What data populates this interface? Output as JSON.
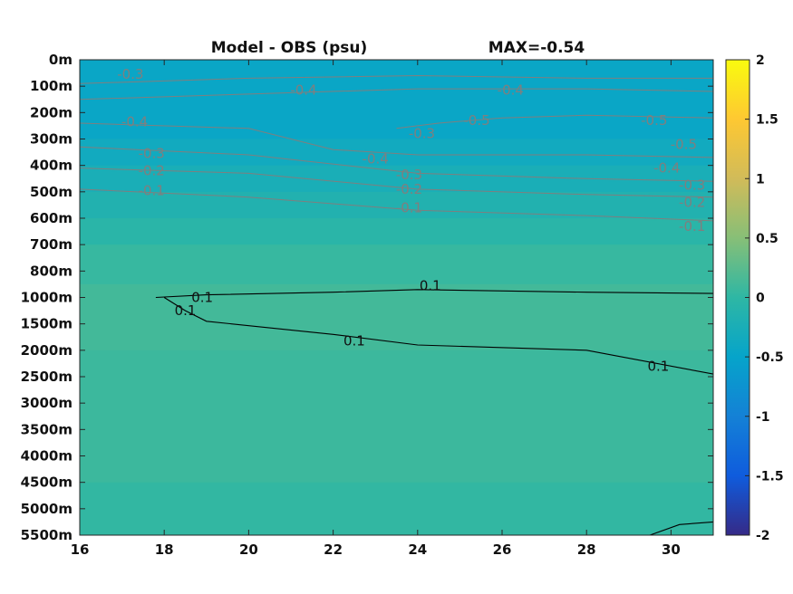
{
  "chart_data": {
    "type": "heatmap",
    "title": "Model - OBS (psu)",
    "subtitle": "MAX=-0.54",
    "x_ticks": [
      "16",
      "18",
      "20",
      "22",
      "24",
      "26",
      "28",
      "30"
    ],
    "xlim": [
      16,
      31
    ],
    "y_ticks": [
      "0m",
      "100m",
      "200m",
      "300m",
      "400m",
      "500m",
      "600m",
      "700m",
      "800m",
      "1000m",
      "1500m",
      "2000m",
      "2500m",
      "3000m",
      "3500m",
      "4000m",
      "4500m",
      "5000m",
      "5500m"
    ],
    "colorbar": {
      "ticks": [
        "2",
        "1.5",
        "1",
        "0.5",
        "0",
        "-0.5",
        "-1",
        "-1.5",
        "-2"
      ],
      "clim": [
        -2,
        2
      ],
      "colormap": "parula"
    },
    "colors": {
      "neg_contour": "#7f7f7f",
      "pos_contour": "#000000"
    },
    "bands": [
      {
        "depth_index": [
          0,
          3
        ],
        "value": -0.45
      },
      {
        "depth_index": [
          3,
          4
        ],
        "value": -0.35
      },
      {
        "depth_index": [
          4,
          5
        ],
        "value": -0.25
      },
      {
        "depth_index": [
          5,
          6
        ],
        "value": -0.15
      },
      {
        "depth_index": [
          6,
          7
        ],
        "value": -0.05
      },
      {
        "depth_index": [
          7,
          8.5
        ],
        "value": 0.05
      },
      {
        "depth_index": [
          8.5,
          11
        ],
        "value": 0.12
      },
      {
        "depth_index": [
          11,
          16
        ],
        "value": 0.08
      },
      {
        "depth_index": [
          16,
          18
        ],
        "value": 0.02
      }
    ],
    "contours": [
      {
        "level": -0.3,
        "points": [
          [
            16,
            0.9
          ],
          [
            20,
            0.7
          ],
          [
            24,
            0.6
          ],
          [
            28,
            0.7
          ],
          [
            31,
            0.7
          ]
        ]
      },
      {
        "level": -0.4,
        "points": [
          [
            16,
            1.5
          ],
          [
            20,
            1.3
          ],
          [
            24,
            1.1
          ],
          [
            28,
            1.1
          ],
          [
            31,
            1.2
          ]
        ]
      },
      {
        "level": -0.5,
        "points": [
          [
            23.5,
            2.6
          ],
          [
            24.5,
            2.4
          ],
          [
            26,
            2.2
          ],
          [
            28,
            2.1
          ],
          [
            31,
            2.2
          ]
        ]
      },
      {
        "level": -0.4,
        "points": [
          [
            16,
            2.4
          ],
          [
            20,
            2.6
          ],
          [
            22,
            3.4
          ],
          [
            24,
            3.6
          ],
          [
            28,
            3.6
          ],
          [
            31,
            3.7
          ]
        ]
      },
      {
        "level": -0.3,
        "points": [
          [
            16,
            3.3
          ],
          [
            20,
            3.6
          ],
          [
            24,
            4.3
          ],
          [
            28,
            4.5
          ],
          [
            31,
            4.6
          ]
        ]
      },
      {
        "level": -0.2,
        "points": [
          [
            16,
            4.1
          ],
          [
            20,
            4.3
          ],
          [
            24,
            4.9
          ],
          [
            28,
            5.1
          ],
          [
            31,
            5.2
          ]
        ]
      },
      {
        "level": -0.1,
        "points": [
          [
            16,
            4.9
          ],
          [
            20,
            5.2
          ],
          [
            24,
            5.7
          ],
          [
            28,
            5.9
          ],
          [
            31,
            6.1
          ]
        ]
      },
      {
        "level": 0.1,
        "points": [
          [
            17.8,
            9.0
          ],
          [
            19,
            8.9
          ],
          [
            22,
            8.8
          ],
          [
            24,
            8.7
          ],
          [
            28,
            8.8
          ],
          [
            31,
            8.85
          ]
        ]
      },
      {
        "level": 0.1,
        "points": [
          [
            18,
            9.0
          ],
          [
            18.5,
            9.5
          ],
          [
            19,
            9.9
          ],
          [
            22,
            10.4
          ],
          [
            24,
            10.8
          ],
          [
            28,
            11.0
          ],
          [
            31,
            11.9
          ]
        ]
      },
      {
        "level": 0.1,
        "points": [
          [
            29.5,
            18
          ],
          [
            30.2,
            17.6
          ],
          [
            31,
            17.5
          ]
        ]
      }
    ],
    "contour_labels": [
      {
        "text": "-0.3",
        "x": 17.2,
        "y": 0.55
      },
      {
        "text": "-0.4",
        "x": 21.3,
        "y": 1.15
      },
      {
        "text": "-0.4",
        "x": 26.2,
        "y": 1.15
      },
      {
        "text": "-0.4",
        "x": 17.3,
        "y": 2.35
      },
      {
        "text": "-0.5",
        "x": 25.4,
        "y": 2.3
      },
      {
        "text": "-0.5",
        "x": 29.6,
        "y": 2.3
      },
      {
        "text": "-0.3",
        "x": 24.1,
        "y": 2.8
      },
      {
        "text": "-0.5",
        "x": 30.3,
        "y": 3.2
      },
      {
        "text": "-0.3",
        "x": 17.7,
        "y": 3.55
      },
      {
        "text": "-0.4",
        "x": 23.0,
        "y": 3.75
      },
      {
        "text": "-0.4",
        "x": 29.9,
        "y": 4.1
      },
      {
        "text": "-0.2",
        "x": 17.7,
        "y": 4.2
      },
      {
        "text": "-0.3",
        "x": 23.8,
        "y": 4.35
      },
      {
        "text": "-0.3",
        "x": 30.5,
        "y": 4.75
      },
      {
        "text": "-0.1",
        "x": 17.7,
        "y": 4.95
      },
      {
        "text": "-0.2",
        "x": 23.8,
        "y": 4.9
      },
      {
        "text": "-0.2",
        "x": 30.5,
        "y": 5.4
      },
      {
        "text": "-0.1",
        "x": 23.8,
        "y": 5.6
      },
      {
        "text": "-0.1",
        "x": 30.5,
        "y": 6.3
      },
      {
        "text": "0.1",
        "x": 24.3,
        "y": 8.55
      },
      {
        "text": "0.1",
        "x": 18.5,
        "y": 9.5
      },
      {
        "text": "0.1",
        "x": 18.9,
        "y": 9.0
      },
      {
        "text": "0.1",
        "x": 22.5,
        "y": 10.65
      },
      {
        "text": "0.1",
        "x": 29.7,
        "y": 11.6
      }
    ]
  }
}
